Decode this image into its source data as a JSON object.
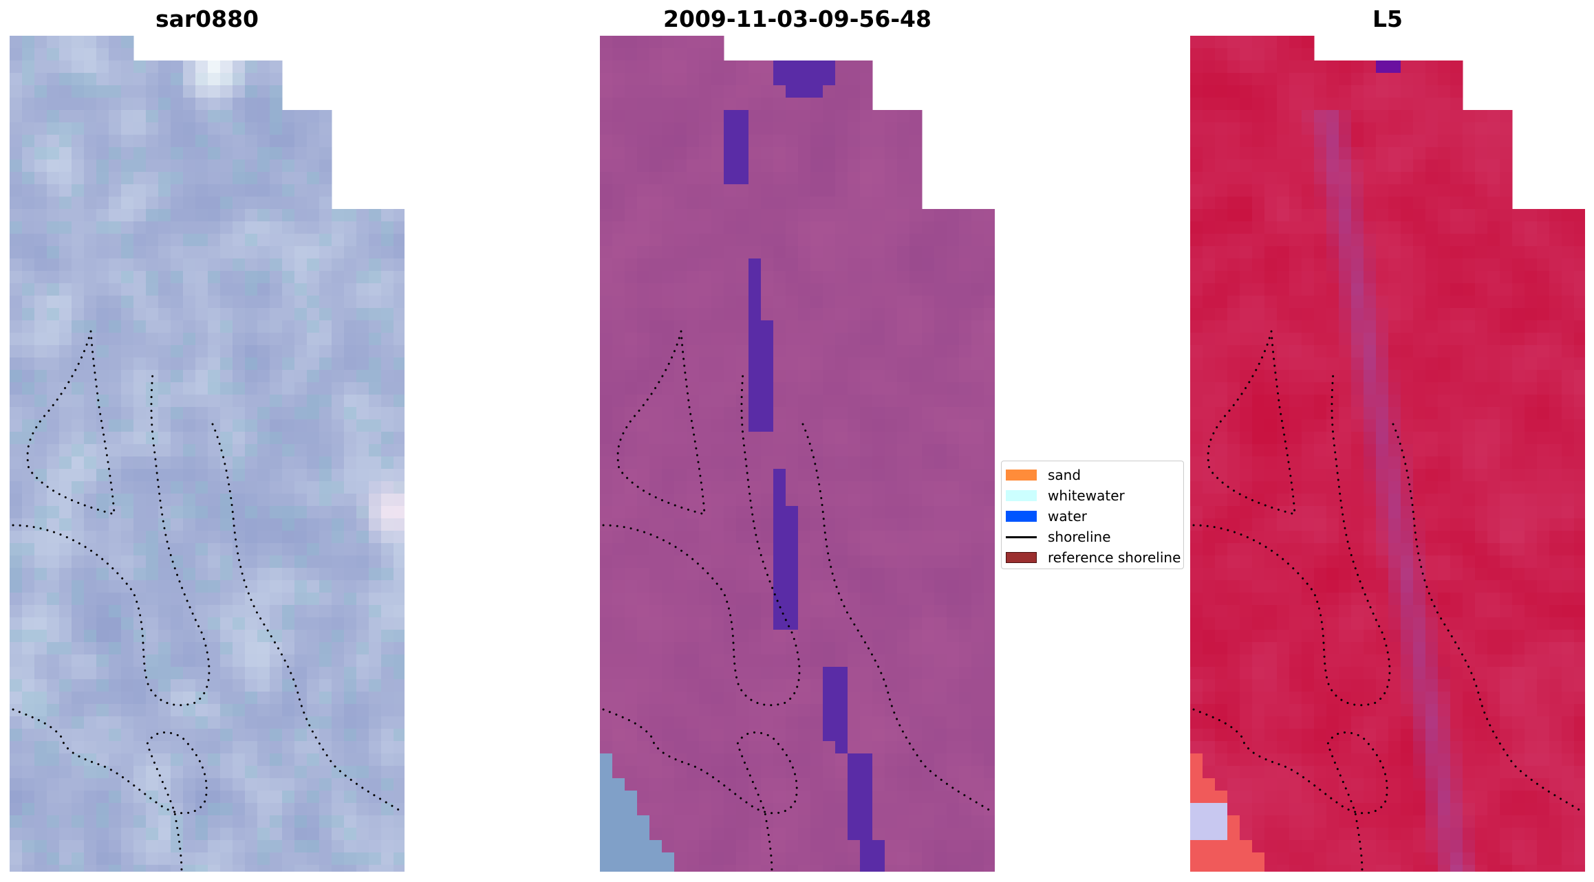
{
  "panels": [
    {
      "title": "sar0880",
      "style": "rgb-composite",
      "colors": {
        "base": "#a9b4d8",
        "bright": "#e8f6fb",
        "dark": "#8695c8"
      }
    },
    {
      "title": "2009-11-03-09-56-48",
      "style": "classified-overlay",
      "colors": {
        "base": "#9a4a8e",
        "light": "#b85f9a",
        "water": "#5a2ca6"
      }
    },
    {
      "title": "L5",
      "style": "index-map",
      "colors": {
        "base": "#c8103e",
        "pink": "#d8588a",
        "purple": "#a04aa4",
        "hot": "#f05a5a"
      }
    }
  ],
  "legend": [
    {
      "label": "sand",
      "color": "#ff8c3a",
      "kind": "patch"
    },
    {
      "label": "whitewater",
      "color": "#ccffff",
      "kind": "patch"
    },
    {
      "label": "water",
      "color": "#0055ff",
      "kind": "patch"
    },
    {
      "label": "shoreline",
      "color": "#000000",
      "kind": "line"
    },
    {
      "label": "reference shoreline",
      "color": "#9b2f2f",
      "kind": "patch"
    }
  ]
}
